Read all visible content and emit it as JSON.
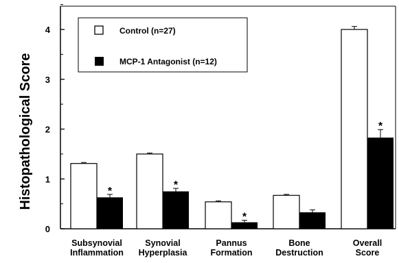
{
  "chart_data": {
    "type": "bar",
    "title": "",
    "ylabel": "Histopathological Score",
    "xlabel": "",
    "ylim": [
      0,
      4.4
    ],
    "yticks": [
      "0",
      "1",
      "2",
      "3",
      "4"
    ],
    "grid": false,
    "legend_position": "top-left",
    "categories": [
      [
        "Subsynovial",
        "Inflammation"
      ],
      [
        "Synovial",
        "Hyperplasia"
      ],
      [
        "Pannus",
        "Formation"
      ],
      [
        "Bone",
        "Destruction"
      ],
      [
        "Overall",
        "Score"
      ]
    ],
    "series": [
      {
        "name": "Control (n=27)",
        "color": "#ffffff",
        "values": [
          1.31,
          1.5,
          0.54,
          0.67,
          4.0
        ],
        "errors": [
          0.02,
          0.02,
          0.02,
          0.02,
          0.06
        ]
      },
      {
        "name": "MCP-1 Antagonist (n=12)",
        "color": "#000000",
        "values": [
          0.63,
          0.75,
          0.13,
          0.33,
          1.83
        ],
        "errors": [
          0.06,
          0.06,
          0.04,
          0.05,
          0.16
        ]
      }
    ],
    "significance": [
      "*",
      "*",
      "*",
      "",
      "*"
    ]
  }
}
